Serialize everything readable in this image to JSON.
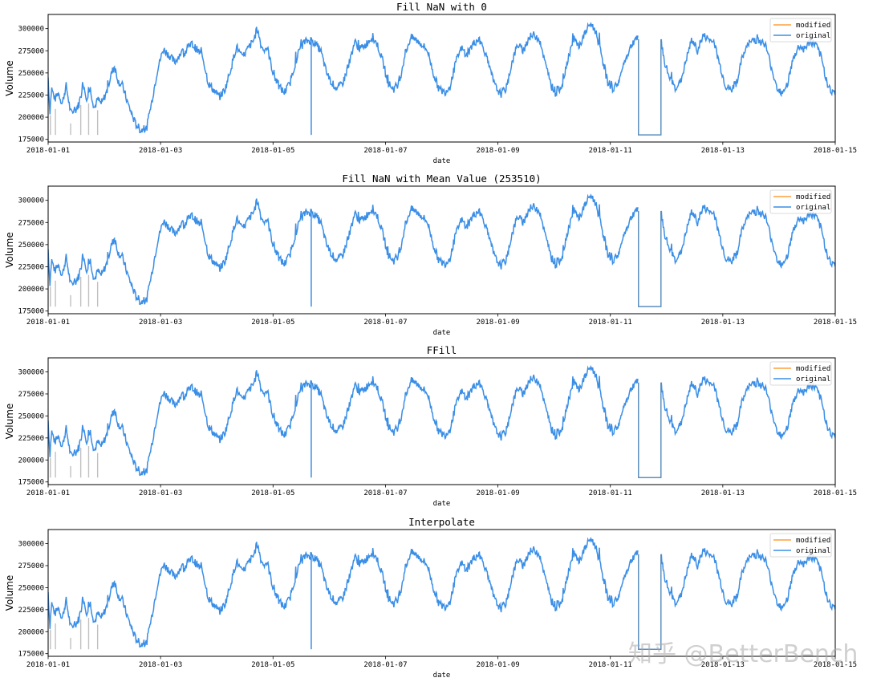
{
  "figure": {
    "watermark": "知乎 @BetterBench"
  },
  "chart_data": [
    {
      "type": "line",
      "title": "Fill NaN with 0",
      "xlabel": "date",
      "ylabel": "Volume",
      "xlim": [
        "2018-01-01",
        "2018-01-15"
      ],
      "ylim": [
        172000,
        316000
      ],
      "xticks": [
        "2018-01-01",
        "2018-01-03",
        "2018-01-05",
        "2018-01-07",
        "2018-01-09",
        "2018-01-11",
        "2018-01-13",
        "2018-01-15"
      ],
      "yticks": [
        175000,
        200000,
        225000,
        250000,
        275000,
        300000
      ],
      "legend": {
        "position": "upper right",
        "entries": [
          "modified",
          "original"
        ]
      },
      "fill_value": 180000,
      "gap_range_days": [
        10.5,
        10.9
      ],
      "spike_day": 4.68
    },
    {
      "type": "line",
      "title": "Fill NaN with Mean Value (253510)",
      "xlabel": "date",
      "ylabel": "Volume",
      "xlim": [
        "2018-01-01",
        "2018-01-15"
      ],
      "ylim": [
        172000,
        316000
      ],
      "xticks": [
        "2018-01-01",
        "2018-01-03",
        "2018-01-05",
        "2018-01-07",
        "2018-01-09",
        "2018-01-11",
        "2018-01-13",
        "2018-01-15"
      ],
      "yticks": [
        175000,
        200000,
        225000,
        250000,
        275000,
        300000
      ],
      "legend": {
        "position": "upper right",
        "entries": [
          "modified",
          "original"
        ]
      },
      "fill_value": 180000,
      "gap_range_days": [
        10.5,
        10.9
      ],
      "spike_day": 4.68
    },
    {
      "type": "line",
      "title": "FFill",
      "xlabel": "date",
      "ylabel": "Volume",
      "xlim": [
        "2018-01-01",
        "2018-01-15"
      ],
      "ylim": [
        172000,
        316000
      ],
      "xticks": [
        "2018-01-01",
        "2018-01-03",
        "2018-01-05",
        "2018-01-07",
        "2018-01-09",
        "2018-01-11",
        "2018-01-13",
        "2018-01-15"
      ],
      "yticks": [
        175000,
        200000,
        225000,
        250000,
        275000,
        300000
      ],
      "legend": {
        "position": "upper right",
        "entries": [
          "modified",
          "original"
        ]
      },
      "fill_value": 180000,
      "gap_range_days": [
        10.5,
        10.9
      ],
      "spike_day": 4.68
    },
    {
      "type": "line",
      "title": "Interpolate",
      "xlabel": "date",
      "ylabel": "Volume",
      "xlim": [
        "2018-01-01",
        "2018-01-15"
      ],
      "ylim": [
        172000,
        316000
      ],
      "xticks": [
        "2018-01-01",
        "2018-01-03",
        "2018-01-05",
        "2018-01-07",
        "2018-01-09",
        "2018-01-11",
        "2018-01-13",
        "2018-01-15"
      ],
      "yticks": [
        175000,
        200000,
        225000,
        250000,
        275000,
        300000
      ],
      "legend": {
        "position": "upper right",
        "entries": [
          "modified",
          "original"
        ]
      },
      "fill_value": 180000,
      "gap_range_days": [
        10.5,
        10.9
      ],
      "spike_day": 4.68
    }
  ],
  "series_shape": {
    "note": "approximate daily keypoints (day offset, volume) of the original series, shared by all panels",
    "keypoints": [
      [
        0.0,
        245000
      ],
      [
        0.03,
        205000
      ],
      [
        0.06,
        233000
      ],
      [
        0.12,
        220000
      ],
      [
        0.18,
        228000
      ],
      [
        0.25,
        215000
      ],
      [
        0.32,
        236000
      ],
      [
        0.4,
        205000
      ],
      [
        0.48,
        207000
      ],
      [
        0.55,
        215000
      ],
      [
        0.62,
        240000
      ],
      [
        0.68,
        222000
      ],
      [
        0.75,
        232000
      ],
      [
        0.82,
        210000
      ],
      [
        0.88,
        220000
      ],
      [
        0.95,
        215000
      ],
      [
        1.05,
        230000
      ],
      [
        1.12,
        248000
      ],
      [
        1.18,
        258000
      ],
      [
        1.25,
        240000
      ],
      [
        1.32,
        236000
      ],
      [
        1.42,
        215000
      ],
      [
        1.55,
        193000
      ],
      [
        1.65,
        185000
      ],
      [
        1.75,
        187000
      ],
      [
        1.85,
        220000
      ],
      [
        1.95,
        255000
      ],
      [
        2.05,
        277000
      ],
      [
        2.15,
        270000
      ],
      [
        2.25,
        262000
      ],
      [
        2.35,
        272000
      ],
      [
        2.45,
        275000
      ],
      [
        2.55,
        283000
      ],
      [
        2.65,
        276000
      ],
      [
        2.75,
        268000
      ],
      [
        2.85,
        238000
      ],
      [
        2.95,
        230000
      ],
      [
        3.05,
        223000
      ],
      [
        3.15,
        232000
      ],
      [
        3.25,
        255000
      ],
      [
        3.35,
        280000
      ],
      [
        3.45,
        267000
      ],
      [
        3.55,
        277000
      ],
      [
        3.65,
        286000
      ],
      [
        3.72,
        300000
      ],
      [
        3.8,
        278000
      ],
      [
        3.9,
        278000
      ],
      [
        4.0,
        250000
      ],
      [
        4.1,
        235000
      ],
      [
        4.2,
        228000
      ],
      [
        4.3,
        238000
      ],
      [
        4.4,
        262000
      ],
      [
        4.5,
        282000
      ],
      [
        4.6,
        286000
      ],
      [
        4.68,
        287000
      ],
      [
        4.75,
        283000
      ],
      [
        4.85,
        275000
      ],
      [
        4.95,
        250000
      ],
      [
        5.05,
        238000
      ],
      [
        5.15,
        232000
      ],
      [
        5.25,
        240000
      ],
      [
        5.35,
        260000
      ],
      [
        5.45,
        285000
      ],
      [
        5.55,
        277000
      ],
      [
        5.65,
        282000
      ],
      [
        5.75,
        290000
      ],
      [
        5.85,
        283000
      ],
      [
        5.95,
        263000
      ],
      [
        6.05,
        238000
      ],
      [
        6.15,
        232000
      ],
      [
        6.25,
        240000
      ],
      [
        6.35,
        272000
      ],
      [
        6.45,
        290000
      ],
      [
        6.55,
        287000
      ],
      [
        6.65,
        282000
      ],
      [
        6.75,
        275000
      ],
      [
        6.85,
        250000
      ],
      [
        6.95,
        232000
      ],
      [
        7.05,
        228000
      ],
      [
        7.15,
        235000
      ],
      [
        7.25,
        262000
      ],
      [
        7.35,
        278000
      ],
      [
        7.45,
        270000
      ],
      [
        7.55,
        282000
      ],
      [
        7.65,
        288000
      ],
      [
        7.75,
        278000
      ],
      [
        7.85,
        255000
      ],
      [
        7.95,
        235000
      ],
      [
        8.05,
        226000
      ],
      [
        8.15,
        233000
      ],
      [
        8.25,
        262000
      ],
      [
        8.35,
        282000
      ],
      [
        8.45,
        275000
      ],
      [
        8.55,
        290000
      ],
      [
        8.65,
        293000
      ],
      [
        8.75,
        287000
      ],
      [
        8.85,
        258000
      ],
      [
        8.95,
        235000
      ],
      [
        9.05,
        228000
      ],
      [
        9.15,
        238000
      ],
      [
        9.25,
        268000
      ],
      [
        9.35,
        288000
      ],
      [
        9.45,
        280000
      ],
      [
        9.55,
        295000
      ],
      [
        9.65,
        306000
      ],
      [
        9.75,
        295000
      ],
      [
        9.85,
        268000
      ],
      [
        9.95,
        240000
      ],
      [
        10.05,
        232000
      ],
      [
        10.15,
        240000
      ],
      [
        10.25,
        262000
      ],
      [
        10.35,
        278000
      ],
      [
        10.45,
        290000
      ],
      [
        10.5,
        288000
      ],
      [
        10.9,
        288000
      ],
      [
        10.95,
        265000
      ],
      [
        11.05,
        245000
      ],
      [
        11.15,
        233000
      ],
      [
        11.25,
        240000
      ],
      [
        11.35,
        265000
      ],
      [
        11.45,
        288000
      ],
      [
        11.55,
        275000
      ],
      [
        11.65,
        292000
      ],
      [
        11.75,
        288000
      ],
      [
        11.85,
        283000
      ],
      [
        11.95,
        258000
      ],
      [
        12.05,
        235000
      ],
      [
        12.15,
        230000
      ],
      [
        12.25,
        240000
      ],
      [
        12.35,
        268000
      ],
      [
        12.45,
        282000
      ],
      [
        12.55,
        288000
      ],
      [
        12.65,
        286000
      ],
      [
        12.75,
        283000
      ],
      [
        12.85,
        260000
      ],
      [
        12.95,
        235000
      ],
      [
        13.05,
        228000
      ],
      [
        13.15,
        238000
      ],
      [
        13.25,
        265000
      ],
      [
        13.35,
        280000
      ],
      [
        13.45,
        277000
      ],
      [
        13.55,
        285000
      ],
      [
        13.65,
        282000
      ],
      [
        13.75,
        268000
      ],
      [
        13.85,
        240000
      ],
      [
        13.95,
        228000
      ],
      [
        14.05,
        225000
      ],
      [
        14.15,
        240000
      ],
      [
        14.25,
        262000
      ],
      [
        14.35,
        272000
      ],
      [
        14.45,
        265000
      ],
      [
        14.55,
        278000
      ],
      [
        14.65,
        280000
      ],
      [
        14.75,
        277000
      ],
      [
        14.85,
        280000
      ],
      [
        14.95,
        258000
      ],
      [
        15.0,
        247000
      ]
    ],
    "early_dropouts_days": [
      0.04,
      0.13,
      0.4,
      0.58,
      0.72,
      0.88
    ],
    "dropout_min": 180000
  },
  "colors": {
    "original": "#3a8ee6",
    "modified": "#ff9f3a",
    "overlay_gap": "#5b8fbf",
    "dropout": "#c0c0c0",
    "axis": "#000000"
  }
}
